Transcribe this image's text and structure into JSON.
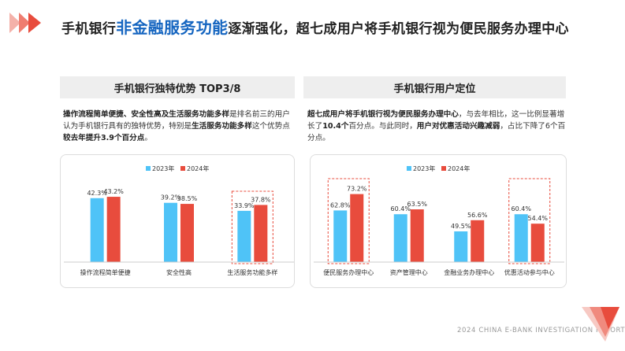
{
  "header": {
    "title_prefix": "手机银行",
    "title_highlight": "非金融服务功能",
    "title_suffix": "逐渐强化，超七成用户将手机银行视为便民服务办理中心"
  },
  "left_panel": {
    "heading": "手机银行独特优势 TOP3/8",
    "desc_parts": [
      {
        "text": "操作流程简单便捷、安全性高及生活服务功能多样",
        "style": "bold"
      },
      {
        "text": "是排名前三的用户认为手机银行具有的独特优势，特别是",
        "style": "normal"
      },
      {
        "text": "生活服务功能多样",
        "style": "bold"
      },
      {
        "text": "这个优势点",
        "style": "normal"
      },
      {
        "text": "较去年提升3.9个百分点",
        "style": "bold"
      },
      {
        "text": "。",
        "style": "normal"
      }
    ]
  },
  "right_panel": {
    "heading": "手机银行用户定位",
    "desc_parts": [
      {
        "text": "超七成用户将手机银行视为便民服务办理中心",
        "style": "bold"
      },
      {
        "text": "，与去年相比，这一比例显著增长了",
        "style": "normal"
      },
      {
        "text": "10.4个",
        "style": "bold"
      },
      {
        "text": "百分点。与此同时，",
        "style": "normal"
      },
      {
        "text": "用户对优惠活动兴趣减弱",
        "style": "bold"
      },
      {
        "text": "，占比下降了6个百分点。",
        "style": "normal"
      }
    ]
  },
  "colors": {
    "y2023": "#4fc3f7",
    "y2024": "#e84c3d",
    "highlight_box": "#e84c3d",
    "accent_blue": "#1565c0"
  },
  "chart_data": [
    {
      "type": "bar",
      "categories": [
        "操作流程简单便捷",
        "安全性高",
        "生活服务功能多样"
      ],
      "series": [
        {
          "name": "2023年",
          "values": [
            42.3,
            39.2,
            33.9
          ]
        },
        {
          "name": "2024年",
          "values": [
            43.2,
            38.5,
            37.8
          ]
        }
      ],
      "highlight_categories": [
        2
      ],
      "ylim": [
        0,
        50
      ],
      "legend": "top-center",
      "grid": false,
      "value_suffix": "%"
    },
    {
      "type": "bar",
      "categories": [
        "便民服务办理中心",
        "资产管理中心",
        "金融业务办理中心",
        "优惠活动参与中心"
      ],
      "series": [
        {
          "name": "2023年",
          "values": [
            62.8,
            60.4,
            49.5,
            60.4
          ]
        },
        {
          "name": "2024年",
          "values": [
            73.2,
            63.5,
            56.6,
            54.4
          ]
        }
      ],
      "highlight_categories": [
        0,
        3
      ],
      "ylim": [
        30,
        80
      ],
      "legend": "top-center",
      "grid": false,
      "value_suffix": "%"
    }
  ],
  "footer": {
    "text": "2024 CHINA E-BANK INVESTIGATION REPORT"
  }
}
